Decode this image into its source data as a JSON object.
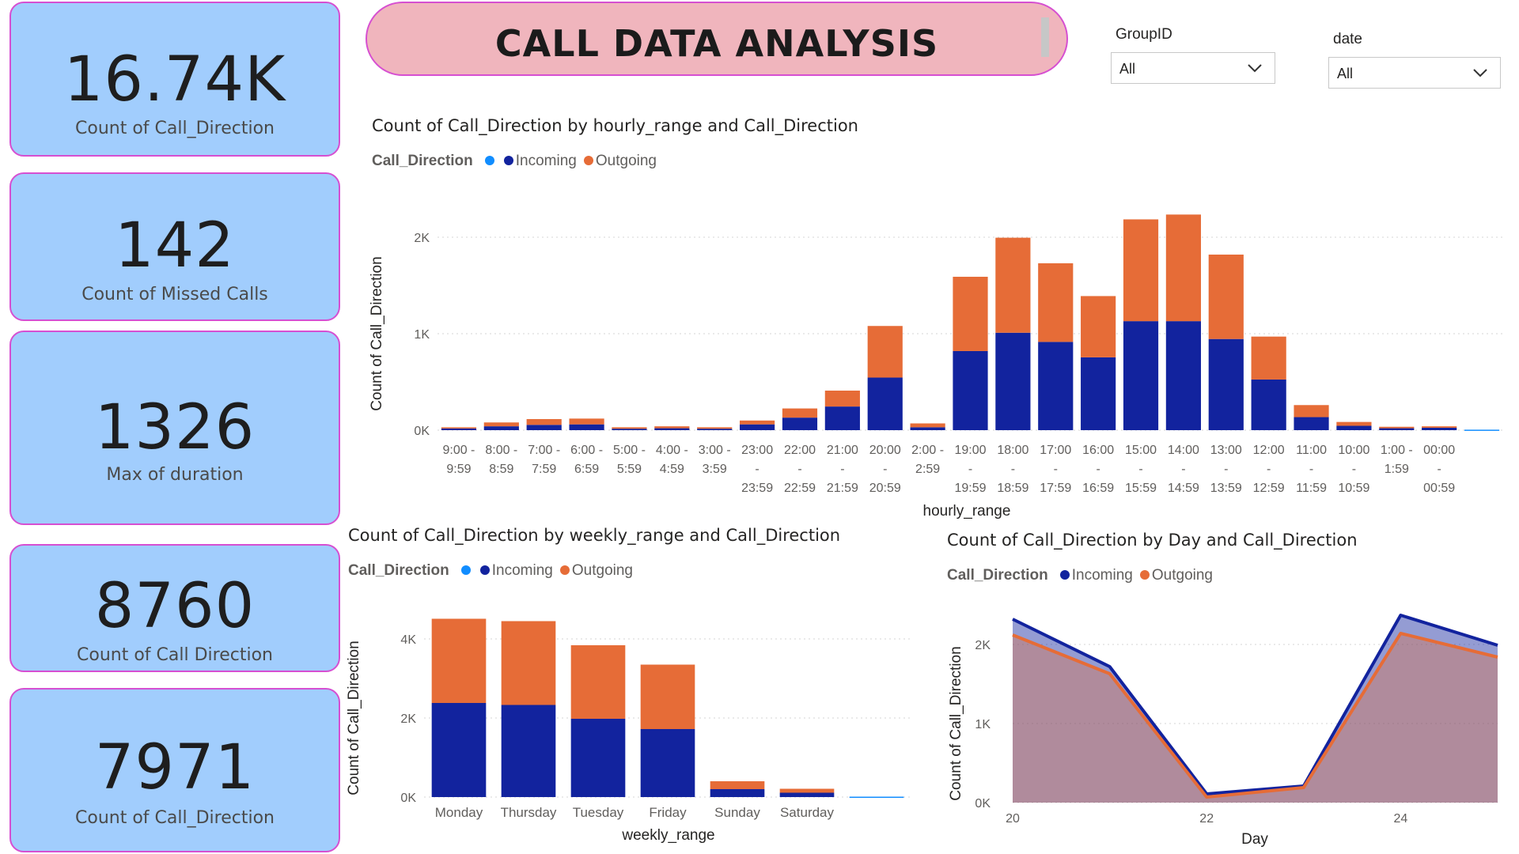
{
  "kpis": [
    {
      "value": "16.74K",
      "label": "Count of Call_Direction"
    },
    {
      "value": "142",
      "label": "Count of Missed Calls"
    },
    {
      "value": "1326",
      "label": "Max of duration"
    },
    {
      "value": "8760",
      "label": "Count of Call Direction"
    },
    {
      "value": "7971",
      "label": "Count of Call_Direction"
    }
  ],
  "header": {
    "title": "CALL DATA ANALYSIS"
  },
  "slicers": [
    {
      "label": "GroupID",
      "value": "All"
    },
    {
      "label": "date",
      "value": "All"
    }
  ],
  "colors": {
    "incoming": "#12239e",
    "outgoing": "#e66c37",
    "blank": "#118dff",
    "kpi_bg": "#a1cdfd",
    "kpi_border": "#d64fd1",
    "banner_bg": "#f0b5bd"
  },
  "chart_data": [
    {
      "type": "bar",
      "stacked": true,
      "title": "Count of Call_Direction by hourly_range and Call_Direction",
      "legend_title": "Call_Direction",
      "legend": [
        "",
        "Incoming",
        "Outgoing"
      ],
      "xlabel": "hourly_range",
      "ylabel": "Count of Call_Direction",
      "ylim": [
        0,
        2000
      ],
      "yticks": [
        "0K",
        "1K",
        "2K"
      ],
      "grid": true,
      "categories": [
        [
          "9:00 -",
          "9:59"
        ],
        [
          "8:00 -",
          "8:59"
        ],
        [
          "7:00 -",
          "7:59"
        ],
        [
          "6:00 -",
          "6:59"
        ],
        [
          "5:00 -",
          "5:59"
        ],
        [
          "4:00 -",
          "4:59"
        ],
        [
          "3:00 -",
          "3:59"
        ],
        [
          "23:00",
          "-",
          "23:59"
        ],
        [
          "22:00",
          "-",
          "22:59"
        ],
        [
          "21:00",
          "-",
          "21:59"
        ],
        [
          "20:00",
          "-",
          "20:59"
        ],
        [
          "2:00 -",
          "2:59"
        ],
        [
          "19:00",
          "-",
          "19:59"
        ],
        [
          "18:00",
          "-",
          "18:59"
        ],
        [
          "17:00",
          "-",
          "17:59"
        ],
        [
          "16:00",
          "-",
          "16:59"
        ],
        [
          "15:00",
          "-",
          "15:59"
        ],
        [
          "14:00",
          "-",
          "14:59"
        ],
        [
          "13:00",
          "-",
          "13:59"
        ],
        [
          "12:00",
          "-",
          "12:59"
        ],
        [
          "11:00",
          "-",
          "11:59"
        ],
        [
          "10:00",
          "-",
          "10:59"
        ],
        [
          "1:00 -",
          "1:59"
        ],
        [
          "00:00",
          "-",
          "00:59"
        ],
        [
          ""
        ]
      ],
      "series": [
        {
          "name": "Incoming",
          "values": [
            18,
            40,
            55,
            60,
            15,
            20,
            15,
            60,
            130,
            245,
            545,
            30,
            820,
            1010,
            915,
            755,
            1130,
            1130,
            945,
            525,
            135,
            45,
            20,
            25,
            0
          ]
        },
        {
          "name": "Outgoing",
          "values": [
            12,
            40,
            60,
            60,
            15,
            20,
            15,
            40,
            95,
            165,
            535,
            40,
            770,
            985,
            815,
            635,
            1055,
            1105,
            875,
            445,
            125,
            40,
            15,
            15,
            0
          ]
        }
      ],
      "blank_values": [
        0,
        0,
        0,
        0,
        0,
        0,
        0,
        0,
        0,
        0,
        0,
        0,
        0,
        0,
        0,
        0,
        0,
        0,
        0,
        0,
        0,
        0,
        0,
        0,
        5
      ]
    },
    {
      "type": "bar",
      "stacked": true,
      "title": "Count of Call_Direction by weekly_range and Call_Direction",
      "legend_title": "Call_Direction",
      "legend": [
        "",
        "Incoming",
        "Outgoing"
      ],
      "xlabel": "weekly_range",
      "ylabel": "Count of Call_Direction",
      "ylim": [
        0,
        4000
      ],
      "yticks": [
        "0K",
        "2K",
        "4K"
      ],
      "grid": true,
      "categories": [
        "Monday",
        "Thursday",
        "Tuesday",
        "Friday",
        "Sunday",
        "Saturday",
        ""
      ],
      "series": [
        {
          "name": "Incoming",
          "values": [
            2380,
            2330,
            1980,
            1720,
            200,
            110,
            0
          ]
        },
        {
          "name": "Outgoing",
          "values": [
            2130,
            2120,
            1860,
            1630,
            200,
            100,
            0
          ]
        }
      ],
      "blank_values": [
        0,
        0,
        0,
        0,
        0,
        0,
        10
      ]
    },
    {
      "type": "area",
      "title": "Count of Call_Direction by Day and Call_Direction",
      "legend_title": "Call_Direction",
      "legend": [
        "Incoming",
        "Outgoing"
      ],
      "xlabel": "Day",
      "ylabel": "Count of Call_Direction",
      "xlim": [
        20,
        25
      ],
      "xticks": [
        20,
        22,
        24
      ],
      "ylim": [
        0,
        2000
      ],
      "yticks": [
        "0K",
        "1K",
        "2K"
      ],
      "grid": true,
      "x": [
        20,
        21,
        22,
        23,
        24,
        25
      ],
      "series": [
        {
          "name": "Incoming",
          "values": [
            2320,
            1720,
            110,
            210,
            2370,
            1990
          ]
        },
        {
          "name": "Outgoing",
          "values": [
            2120,
            1630,
            70,
            190,
            2140,
            1840
          ]
        }
      ]
    }
  ]
}
